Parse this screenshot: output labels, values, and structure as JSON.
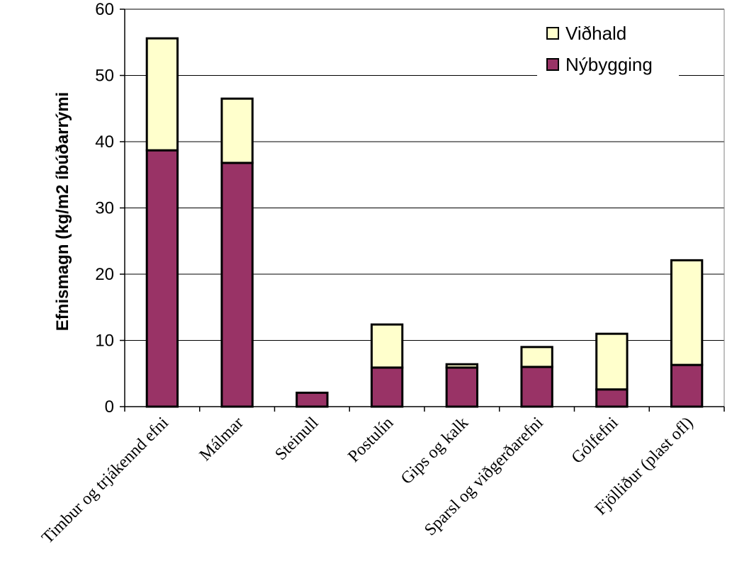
{
  "chart_data": {
    "type": "bar",
    "stacked": true,
    "categories": [
      "Timbur og trjákennd efni",
      "Málmar",
      "Steinull",
      "Postulín",
      "Gips og kalk",
      "Sparsl og viðgerðarefni",
      "Gólfefni",
      "Fjölliður (plast ofl)"
    ],
    "series": [
      {
        "name": "Nýbygging",
        "color": "#993366",
        "values": [
          38.7,
          36.8,
          2.1,
          5.9,
          5.9,
          6.0,
          2.6,
          6.3
        ]
      },
      {
        "name": "Viðhald",
        "color": "#FFFFCC",
        "values": [
          16.9,
          9.7,
          0.0,
          6.5,
          0.5,
          3.0,
          8.4,
          15.8
        ]
      }
    ],
    "ylabel": "Efnismagn (kg/m2 íbúðarrými",
    "xlabel": "",
    "ylim": [
      0,
      60
    ],
    "yticks": [
      0,
      10,
      20,
      30,
      40,
      50,
      60
    ],
    "grid": true,
    "legend": {
      "position": "top-right",
      "order": [
        "Viðhald",
        "Nýbygging"
      ]
    }
  }
}
